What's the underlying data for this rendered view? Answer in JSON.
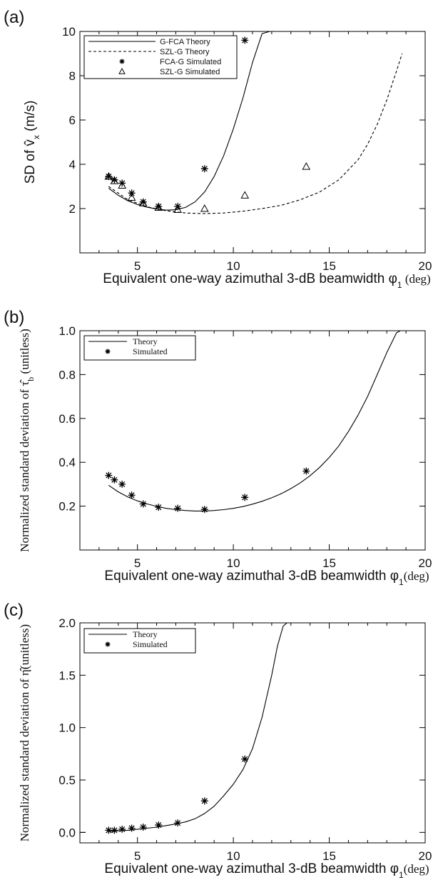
{
  "chart_data": [
    {
      "type": "line",
      "panel_label": "(a)",
      "xlabel": "Equivalent one-way azimuthal 3-dB beamwidth φ",
      "xlabel_sub": "1",
      "xlabel_suffix": " (deg)",
      "ylabel": "SD of v̂",
      "ylabel_sub": "x",
      "ylabel_suffix": " (m/s)",
      "xlim": [
        2,
        20
      ],
      "ylim": [
        0,
        10
      ],
      "xticks": [
        5,
        10,
        15,
        20
      ],
      "yticks": [
        2,
        4,
        6,
        8,
        10
      ],
      "grid": false,
      "legend_placement": "top-left",
      "series": [
        {
          "name": "G-FCA Theory",
          "style": "solid",
          "x": [
            3.5,
            4.0,
            4.5,
            5.0,
            5.5,
            6.0,
            6.5,
            7.0,
            7.5,
            8.0,
            8.5,
            9.0,
            9.5,
            10.0,
            10.5,
            11.0,
            11.5,
            11.9
          ],
          "y": [
            2.92,
            2.6,
            2.35,
            2.18,
            2.06,
            1.98,
            1.93,
            1.95,
            2.05,
            2.3,
            2.75,
            3.45,
            4.4,
            5.6,
            7.0,
            8.6,
            9.9,
            10.0
          ]
        },
        {
          "name": "SZL-G Theory",
          "style": "dashed",
          "x": [
            3.5,
            4.5,
            5.5,
            6.5,
            7.5,
            8.5,
            9.5,
            10.5,
            11.5,
            12.5,
            13.5,
            14.5,
            15.5,
            16.5,
            17.0,
            17.5,
            18.0,
            18.5,
            18.8
          ],
          "y": [
            3.0,
            2.4,
            2.08,
            1.9,
            1.8,
            1.77,
            1.8,
            1.88,
            2.0,
            2.15,
            2.4,
            2.75,
            3.3,
            4.2,
            4.9,
            5.8,
            6.9,
            8.2,
            9.0
          ]
        },
        {
          "name": "FCA-G Simulated",
          "marker": "asterisk",
          "x": [
            3.5,
            3.8,
            4.2,
            4.7,
            5.3,
            6.1,
            7.1,
            8.5,
            10.6
          ],
          "y": [
            3.45,
            3.3,
            3.15,
            2.7,
            2.3,
            2.1,
            2.1,
            3.8,
            9.6
          ]
        },
        {
          "name": "SZL-G Simulated",
          "marker": "triangle",
          "x": [
            3.5,
            3.8,
            4.2,
            4.7,
            5.3,
            6.1,
            7.1,
            8.5,
            10.6,
            13.8
          ],
          "y": [
            3.45,
            3.25,
            3.05,
            2.5,
            2.25,
            2.05,
            1.95,
            2.0,
            2.6,
            3.9
          ]
        }
      ]
    },
    {
      "type": "line",
      "panel_label": "(b)",
      "xlabel": "Equivalent one-way azimuthal 3-dB beamwidth φ",
      "xlabel_sub": "1",
      "xlabel_suffix": "(deg)",
      "ylabel": "Normalized standard deviation of τ̂",
      "ylabel_sub": "b",
      "ylabel_suffix": " (unitless)",
      "xlim": [
        2,
        20
      ],
      "ylim": [
        0,
        1.0
      ],
      "xticks": [
        5,
        10,
        15,
        20
      ],
      "yticks": [
        0.2,
        0.4,
        0.6,
        0.8,
        1.0
      ],
      "ytick_labels": [
        "0.2",
        "0.4",
        "0.6",
        "0.8",
        "1.0"
      ],
      "grid": false,
      "legend_placement": "top-left",
      "series": [
        {
          "name": "Theory",
          "style": "solid",
          "x": [
            3.5,
            4.0,
            4.5,
            5.0,
            5.5,
            6.0,
            6.5,
            7.0,
            7.5,
            8.0,
            8.5,
            9.0,
            9.5,
            10.0,
            10.5,
            11.0,
            11.5,
            12.0,
            12.5,
            13.0,
            13.5,
            14.0,
            14.5,
            15.0,
            15.5,
            16.0,
            16.5,
            17.0,
            17.5,
            18.0,
            18.5,
            18.7
          ],
          "y": [
            0.295,
            0.265,
            0.242,
            0.224,
            0.21,
            0.199,
            0.19,
            0.184,
            0.18,
            0.178,
            0.178,
            0.18,
            0.184,
            0.19,
            0.198,
            0.209,
            0.222,
            0.238,
            0.257,
            0.28,
            0.307,
            0.339,
            0.377,
            0.422,
            0.475,
            0.54,
            0.615,
            0.7,
            0.8,
            0.9,
            0.99,
            1.0
          ]
        },
        {
          "name": "Simulated",
          "marker": "asterisk",
          "x": [
            3.5,
            3.8,
            4.2,
            4.7,
            5.3,
            6.1,
            7.1,
            8.5,
            10.6,
            13.8
          ],
          "y": [
            0.34,
            0.32,
            0.3,
            0.25,
            0.21,
            0.195,
            0.19,
            0.185,
            0.24,
            0.36
          ]
        }
      ]
    },
    {
      "type": "line",
      "panel_label": "(c)",
      "xlabel": "Equivalent one-way azimuthal 3-dB beamwidth φ",
      "xlabel_sub": "1",
      "xlabel_suffix": "(deg)",
      "ylabel": "Normalized standard deviation of η̂",
      "ylabel_suffix": "(unitless)",
      "xlim": [
        2,
        20
      ],
      "ylim": [
        -0.1,
        2.0
      ],
      "xticks": [
        5,
        10,
        15,
        20
      ],
      "yticks": [
        0.0,
        0.5,
        1.0,
        1.5,
        2.0
      ],
      "ytick_labels": [
        "0.0",
        "0.5",
        "1.0",
        "1.5",
        "2.0"
      ],
      "grid": false,
      "legend_placement": "top-left",
      "series": [
        {
          "name": "Theory",
          "style": "solid",
          "x": [
            3.5,
            4.0,
            4.5,
            5.0,
            5.5,
            6.0,
            6.5,
            7.0,
            7.5,
            8.0,
            8.5,
            9.0,
            9.5,
            10.0,
            10.5,
            11.0,
            11.5,
            12.0,
            12.3,
            12.6,
            12.8
          ],
          "y": [
            0.01,
            0.015,
            0.02,
            0.03,
            0.04,
            0.05,
            0.065,
            0.08,
            0.1,
            0.13,
            0.18,
            0.25,
            0.35,
            0.46,
            0.6,
            0.8,
            1.1,
            1.5,
            1.78,
            1.97,
            2.0
          ]
        },
        {
          "name": "Simulated",
          "marker": "asterisk",
          "x": [
            3.5,
            3.8,
            4.2,
            4.7,
            5.3,
            6.1,
            7.1,
            8.5,
            10.6
          ],
          "y": [
            0.02,
            0.02,
            0.03,
            0.04,
            0.05,
            0.07,
            0.09,
            0.3,
            0.7
          ]
        }
      ]
    }
  ]
}
